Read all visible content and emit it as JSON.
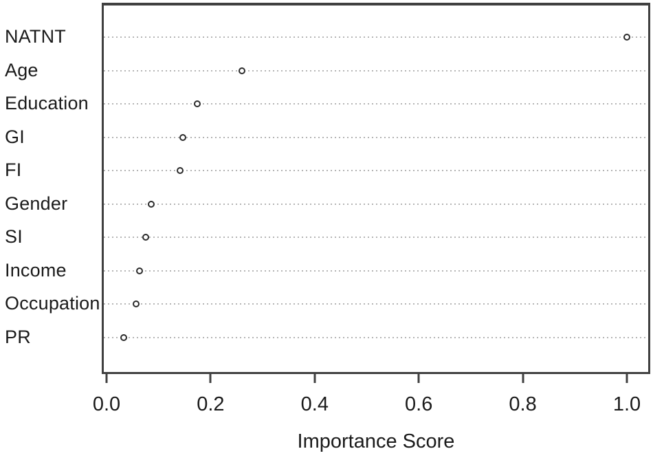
{
  "chart_data": {
    "type": "scatter",
    "variant": "dotchart",
    "title": "",
    "xlabel": "Importance Score",
    "ylabel": "",
    "categories": [
      "NATNT",
      "Age",
      "Education",
      "GI",
      "FI",
      "Gender",
      "SI",
      "Income",
      "Occupation",
      "PR"
    ],
    "values": [
      1.0,
      0.26,
      0.175,
      0.147,
      0.142,
      0.086,
      0.075,
      0.064,
      0.057,
      0.033
    ],
    "x_ticks": [
      0.0,
      0.2,
      0.4,
      0.6,
      0.8,
      1.0
    ],
    "x_tick_labels": [
      "0.0",
      "0.2",
      "0.4",
      "0.6",
      "0.8",
      "1.0"
    ],
    "xlim": [
      0.0,
      1.0
    ],
    "grid": "dotted-horizontal",
    "legend": "none",
    "marker": "open-circle",
    "colors": {
      "background": "#ffffff",
      "box_border": "#404040",
      "grid": "#b4b4b4",
      "point_stroke": "#2b2b2b",
      "point_fill": "#ffffff",
      "text": "#1a1a1a"
    }
  }
}
